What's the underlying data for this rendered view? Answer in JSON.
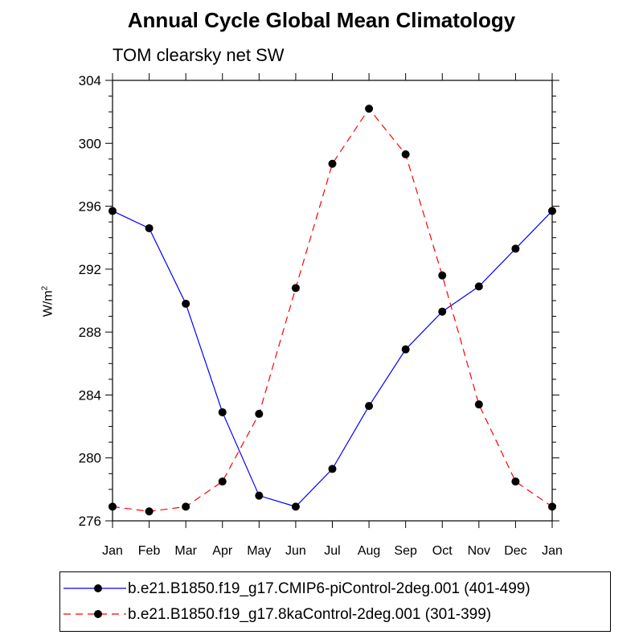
{
  "chart_data": {
    "type": "line",
    "title": "Annual Cycle Global Mean Climatology",
    "subtitle": "TOM clearsky net SW",
    "xlabel": "",
    "ylabel": "W/m",
    "ylabel_superscript": "2",
    "categories": [
      "Jan",
      "Feb",
      "Mar",
      "Apr",
      "May",
      "Jun",
      "Jul",
      "Aug",
      "Sep",
      "Oct",
      "Nov",
      "Dec",
      "Jan"
    ],
    "ylim": [
      276,
      304
    ],
    "yticks": [
      276,
      280,
      284,
      288,
      292,
      296,
      300,
      304
    ],
    "series": [
      {
        "name": "b.e21.B1850.f19_g17.CMIP6-piControl-2deg.001 (401-499)",
        "color": "#0000ff",
        "dash": "solid",
        "values": [
          295.7,
          294.6,
          289.8,
          282.9,
          277.6,
          276.9,
          279.3,
          283.3,
          286.9,
          289.3,
          290.9,
          293.3,
          295.7
        ]
      },
      {
        "name": "b.e21.B1850.f19_g17.8kaControl-2deg.001 (301-399)",
        "color": "#ff0000",
        "dash": "dashed",
        "values": [
          276.9,
          276.6,
          276.9,
          278.5,
          282.8,
          290.8,
          298.7,
          302.2,
          299.3,
          291.6,
          283.4,
          278.5,
          276.9
        ]
      }
    ]
  }
}
